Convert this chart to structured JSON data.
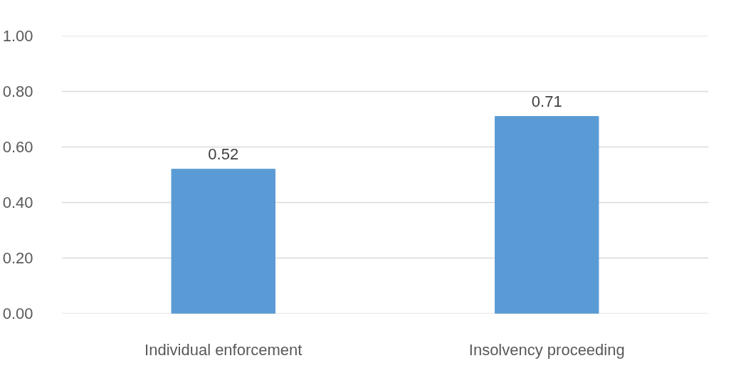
{
  "chart_data": {
    "type": "bar",
    "categories": [
      "Individual enforcement",
      "Insolvency proceeding"
    ],
    "values": [
      0.52,
      0.71
    ],
    "color": "#5b9bd5",
    "ylim": [
      0,
      1
    ],
    "yticks": [
      {
        "value": 0,
        "label": "0.00"
      },
      {
        "value": 0.2,
        "label": "0.20"
      },
      {
        "value": 0.4,
        "label": "0.40"
      },
      {
        "value": 0.6,
        "label": "0.60"
      },
      {
        "value": 0.8,
        "label": "0.80"
      },
      {
        "value": 1,
        "label": "1.00"
      }
    ],
    "grid": "y",
    "data_labels": true
  }
}
